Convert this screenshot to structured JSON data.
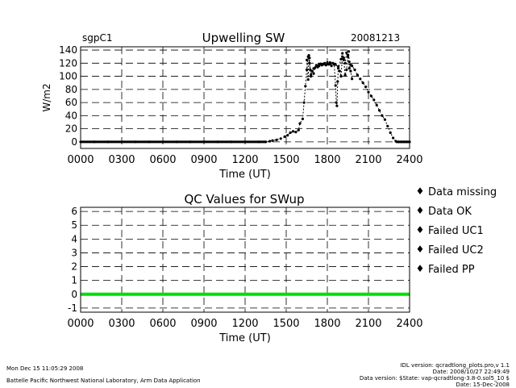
{
  "chart_data": [
    {
      "type": "scatter",
      "site": "sgpC1",
      "title": "Upwelling SW",
      "date": "20081213",
      "xlabel": "Time (UT)",
      "ylabel": "W/m2",
      "xlim": [
        0,
        2400
      ],
      "ylim": [
        -10,
        145
      ],
      "x_ticks": [
        "0000",
        "0300",
        "0600",
        "0900",
        "1200",
        "1500",
        "1800",
        "2100",
        "2400"
      ],
      "y_ticks": [
        0,
        20,
        40,
        60,
        80,
        100,
        120,
        140
      ],
      "grid": true,
      "series": [
        {
          "color": "#000000",
          "x": [
            0,
            100,
            200,
            300,
            400,
            500,
            600,
            700,
            800,
            900,
            1000,
            1100,
            1200,
            1300,
            1350,
            1380,
            1400,
            1430,
            1460,
            1490,
            1510,
            1530,
            1550,
            1570,
            1590,
            1600,
            1620,
            1630,
            1640,
            1650,
            1660,
            1670,
            1680,
            1700,
            1720,
            1740,
            1760,
            1780,
            1800,
            1820,
            1840,
            1860,
            1880,
            1900,
            1910,
            1920,
            1930,
            1940,
            1950,
            1960,
            1970,
            1980,
            2000,
            2020,
            2040,
            2060,
            2080,
            2100,
            2120,
            2140,
            2160,
            2180,
            2200,
            2220,
            2240,
            2260,
            2280,
            2300,
            2320,
            2340,
            2360,
            2380,
            2400
          ],
          "y": [
            0,
            0,
            0,
            0,
            0,
            0,
            0,
            0,
            0,
            0,
            0,
            0,
            0,
            0,
            0,
            1,
            2,
            3,
            5,
            8,
            10,
            14,
            16,
            15,
            18,
            28,
            35,
            60,
            85,
            110,
            130,
            120,
            100,
            112,
            116,
            118,
            118,
            119,
            120,
            121,
            120,
            118,
            112,
            126,
            135,
            128,
            120,
            136,
            130,
            112,
            118,
            116,
            110,
            102,
            96,
            90,
            84,
            76,
            70,
            64,
            56,
            48,
            40,
            34,
            24,
            14,
            6,
            1,
            0,
            0,
            0,
            0,
            0
          ]
        },
        {
          "color": "#000000",
          "x": [
            1650,
            1660,
            1665,
            1670,
            1675,
            1680,
            1690,
            1700,
            1710,
            1720,
            1730,
            1740,
            1750,
            1760,
            1770,
            1780,
            1790,
            1800,
            1810,
            1820,
            1830,
            1840,
            1850,
            1860,
            1865,
            1870,
            1875,
            1880,
            1890,
            1900,
            1910,
            1920,
            1930,
            1940,
            1950,
            1955,
            1960,
            1970,
            1980
          ],
          "y": [
            125,
            95,
            132,
            128,
            110,
            102,
            108,
            104,
            113,
            117,
            114,
            116,
            119,
            117,
            118,
            120,
            117,
            121,
            118,
            119,
            116,
            120,
            118,
            86,
            60,
            55,
            92,
            115,
            108,
            100,
            130,
            125,
            102,
            110,
            132,
            138,
            122,
            108,
            96
          ]
        }
      ]
    },
    {
      "type": "line",
      "title": "QC Values for SWup",
      "xlabel": "Time (UT)",
      "xlim": [
        0,
        2400
      ],
      "ylim": [
        -1.3,
        6.3
      ],
      "x_ticks": [
        "0000",
        "0300",
        "0600",
        "0900",
        "1200",
        "1500",
        "1800",
        "2100",
        "2400"
      ],
      "y_ticks": [
        -1,
        0,
        1,
        2,
        3,
        4,
        5,
        6
      ],
      "grid": true,
      "series": [
        {
          "color": "#00e000",
          "x": [
            0,
            2400
          ],
          "y": [
            0,
            0
          ]
        }
      ],
      "legend": {
        "placement": "right",
        "entries": [
          {
            "label": "Data missing",
            "color": "#000000"
          },
          {
            "label": "Data OK",
            "color": "#00ff00"
          },
          {
            "label": "Failed UC1",
            "color": "#ffff00"
          },
          {
            "label": "Failed UC2",
            "color": "#ff8c00"
          },
          {
            "label": "Failed PP",
            "color": "#ff0000"
          }
        ]
      }
    }
  ],
  "footer": {
    "timestamp": "Mon Dec 15 11:05:29 2008",
    "org": "Battelle Pacific Northwest National Laboratory, Arm Data Application",
    "idl_version": "IDL version: qcradtlong_plots.pro,v 1.1",
    "date_line": "Date: 2008/10/27 22:49:49",
    "data_version": "Data version: $State: vap-qcradtlong-3.8-0.sol5_10 $",
    "date_short": "Date: 15-Dec-2008"
  }
}
